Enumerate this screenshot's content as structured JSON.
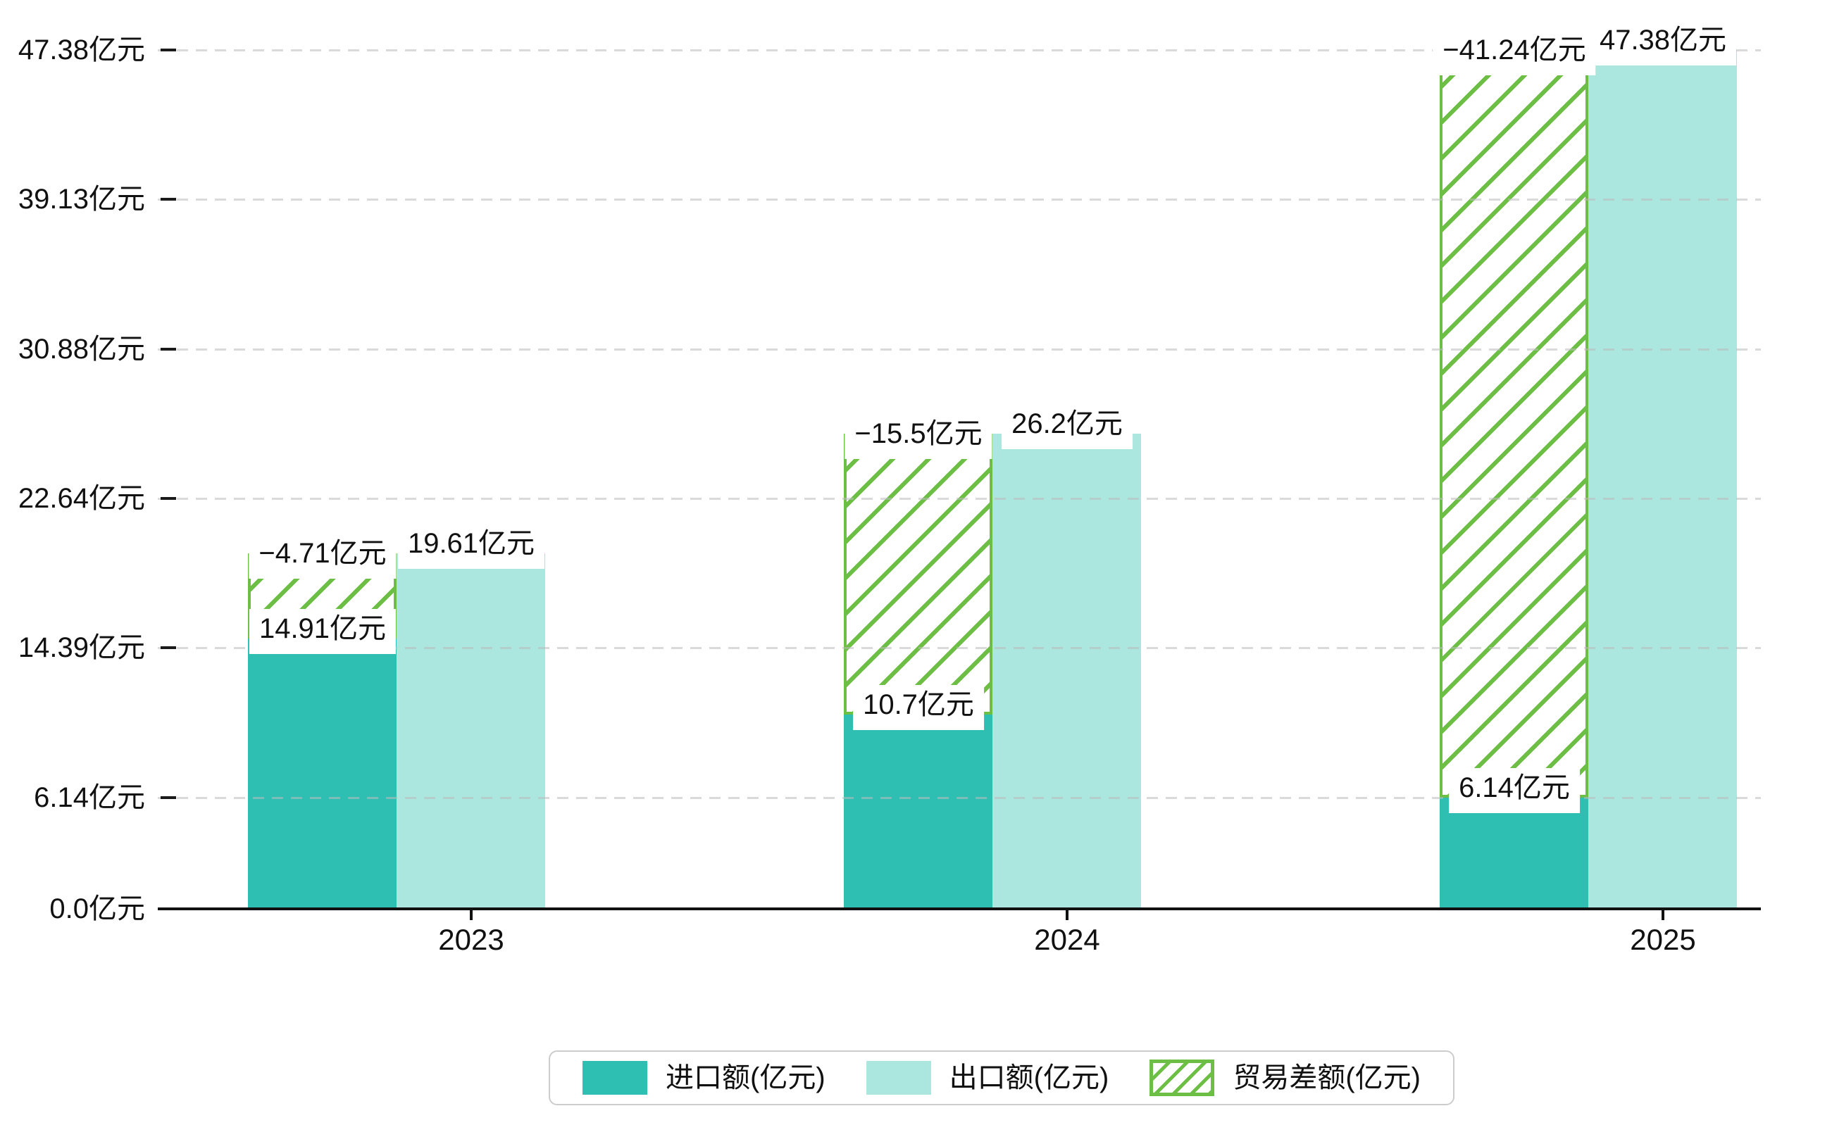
{
  "chart_data": {
    "type": "bar",
    "title": "",
    "unit": "亿元",
    "categories": [
      "2023",
      "2024",
      "2025"
    ],
    "series": [
      {
        "name": "进口额(亿元)",
        "key": "import",
        "values": [
          14.91,
          10.7,
          6.14
        ],
        "labels": [
          "14.91亿元",
          "10.7亿元",
          "6.14亿元"
        ],
        "style": "solid"
      },
      {
        "name": "出口额(亿元)",
        "key": "export",
        "values": [
          19.61,
          26.2,
          47.38
        ],
        "labels": [
          "19.61亿元",
          "26.2亿元",
          "47.38亿元"
        ],
        "style": "solid"
      },
      {
        "name": "贸易差额(亿元)",
        "key": "balance",
        "values": [
          -4.71,
          -15.5,
          -41.24
        ],
        "labels": [
          "−4.71亿元",
          "−15.5亿元",
          "−41.24亿元"
        ],
        "style": "hatched",
        "note": "drawn as hatched bar spanning from import value up to export value"
      }
    ],
    "y_axis": {
      "ticks": [
        {
          "value": 0,
          "label": "0.0亿元"
        },
        {
          "value": 6.14,
          "label": "6.14亿元"
        },
        {
          "value": 14.39,
          "label": "14.39亿元"
        },
        {
          "value": 22.64,
          "label": "22.64亿元"
        },
        {
          "value": 30.88,
          "label": "30.88亿元"
        },
        {
          "value": 39.13,
          "label": "39.13亿元"
        },
        {
          "value": 47.38,
          "label": "47.38亿元"
        }
      ],
      "ylim": [
        0,
        47.38
      ]
    },
    "grid": "horizontal-dashed",
    "legend_position": "bottom-center"
  },
  "legend": {
    "items": [
      {
        "label": "进口额(亿元)",
        "swatch": "solid-import"
      },
      {
        "label": "出口额(亿元)",
        "swatch": "solid-export"
      },
      {
        "label": "贸易差额(亿元)",
        "swatch": "hatched-balance"
      }
    ]
  },
  "colors": {
    "import": "#2fbfb2",
    "export": "#abe6df",
    "balance": "#6dbe45",
    "axis": "#111111",
    "grid": "#e0e0e0",
    "legend_border": "#cccccc",
    "text": "#111111",
    "label_bg": "#ffffff"
  }
}
